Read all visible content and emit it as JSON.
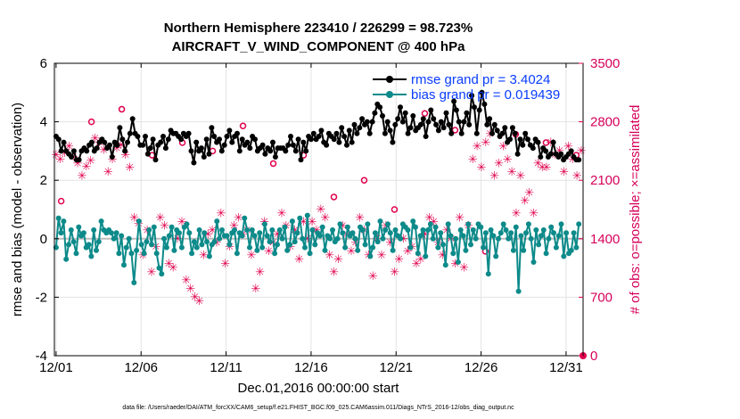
{
  "chart_data": {
    "type": "line",
    "title_line1": "Northern Hemisphere 223410 / 226299 = 98.723%",
    "title_line2": "AIRCRAFT_V_WIND_COMPONENT @ 400 hPa",
    "xlabel": "Dec.01,2016 00:00:00 start",
    "ylabel_left": "rmse and bias (model - observation)",
    "ylabel_right": "# of obs: o=possible; ×=assimilated",
    "x_ticks": [
      1,
      6,
      11,
      16,
      21,
      26,
      31
    ],
    "x_tick_labels": [
      "12/01",
      "12/06",
      "12/11",
      "12/16",
      "12/21",
      "12/26",
      "12/31"
    ],
    "xlim": [
      0.9,
      32.0
    ],
    "ylim_left": [
      -4,
      6
    ],
    "y_ticks_left": [
      -4,
      -2,
      0,
      2,
      4,
      6
    ],
    "ylim_right": [
      0,
      3500
    ],
    "y_ticks_right": [
      0,
      700,
      1400,
      2100,
      2800,
      3500
    ],
    "legend": {
      "position": "top-right",
      "entries": [
        "rmse grand pr = 3.4024",
        "bias grand pr = 0.019439"
      ]
    },
    "colors": {
      "rmse": "#000000",
      "bias": "#0d8a8a",
      "obs": "#e0004d",
      "zero_line": "#bdbdbd",
      "grid": "#e3e3e3"
    },
    "series": [
      {
        "name": "rmse",
        "values": [
          3.5,
          3.4,
          3.0,
          3.3,
          3.0,
          2.9,
          2.8,
          3.0,
          2.7,
          2.7,
          3.0,
          3.1,
          3.0,
          3.2,
          3.3,
          3.0,
          3.1,
          3.3,
          3.4,
          3.3,
          3.1,
          3.2,
          2.8,
          3.3,
          3.2,
          3.8,
          3.4,
          3.0,
          3.3,
          3.6,
          4.1,
          3.6,
          3.5,
          3.2,
          3.2,
          3.5,
          2.9,
          3.1,
          3.4,
          2.7,
          3.2,
          3.3,
          3.5,
          3.1,
          3.4,
          3.7,
          3.6,
          3.6,
          3.5,
          3.4,
          3.6,
          3.5,
          3.6,
          3.0,
          2.6,
          3.3,
          3.0,
          3.1,
          2.8,
          3.4,
          2.9,
          3.8,
          3.5,
          3.3,
          3.4,
          3.0,
          3.2,
          3.5,
          3.7,
          3.3,
          3.5,
          3.6,
          3.0,
          3.4,
          3.2,
          3.3,
          3.1,
          3.5,
          3.4,
          3.0,
          3.1,
          3.2,
          2.9,
          3.1,
          3.0,
          3.3,
          2.8,
          3.1,
          3.1,
          3.1,
          3.0,
          3.2,
          3.5,
          3.2,
          3.0,
          3.4,
          2.7,
          3.3,
          3.0,
          3.5,
          3.4,
          3.6,
          3.4,
          3.5,
          3.7,
          3.3,
          3.2,
          3.6,
          3.5,
          3.4,
          3.6,
          3.3,
          3.8,
          3.5,
          3.2,
          3.7,
          3.3,
          3.9,
          3.6,
          3.8,
          4.1,
          3.9,
          4.0,
          3.6,
          4.0,
          4.3,
          4.6,
          4.5,
          4.2,
          3.6,
          4.0,
          3.7,
          3.3,
          3.9,
          4.1,
          4.5,
          4.0,
          4.3,
          3.6,
          3.8,
          4.2,
          3.7,
          3.8,
          3.9,
          4.1,
          3.5,
          4.0,
          4.4,
          4.1,
          3.9,
          3.7,
          4.0,
          3.8,
          4.3,
          3.9,
          3.6,
          4.7,
          4.4,
          4.0,
          3.6,
          4.0,
          4.3,
          3.9,
          4.9,
          4.5,
          3.6,
          4.4,
          5.0,
          4.6,
          3.9,
          4.1,
          3.6,
          3.9,
          3.7,
          3.5,
          3.6,
          3.8,
          3.3,
          3.4,
          3.8,
          3.6,
          2.9,
          3.4,
          3.2,
          3.6,
          3.4,
          3.2,
          3.1,
          3.4,
          3.3,
          2.8,
          3.1,
          3.0,
          2.8,
          2.9,
          3.3,
          2.9,
          2.8,
          2.9,
          2.7,
          2.8,
          2.9,
          3.0,
          2.8,
          2.7,
          2.7
        ],
        "color": "#000000"
      },
      {
        "name": "bias",
        "values": [
          -0.3,
          0.7,
          0.2,
          0.6,
          -0.7,
          -0.2,
          0.3,
          -0.1,
          -0.5,
          0.4,
          0.1,
          0.2,
          -0.3,
          -0.2,
          -0.6,
          0.3,
          -0.4,
          -0.1,
          0.6,
          0.3,
          0.2,
          0.3,
          0.2,
          0.0,
          0.2,
          -0.5,
          0.1,
          -0.9,
          -0.3,
          0.0,
          -0.5,
          -1.5,
          -0.4,
          0.6,
          -0.2,
          -0.5,
          -0.1,
          0.3,
          -0.2,
          0.4,
          -0.5,
          -1.0,
          -1.2,
          0.0,
          -0.3,
          0.1,
          0.4,
          -0.4,
          0.3,
          0.2,
          -0.3,
          0.4,
          0.5,
          0.2,
          -0.5,
          -0.1,
          -0.3,
          0.3,
          -0.2,
          0.2,
          -0.1,
          -0.6,
          -0.2,
          -0.1,
          0.6,
          0.0,
          0.3,
          0.1,
          0.1,
          -0.2,
          0.2,
          0.3,
          -0.5,
          0.2,
          0.1,
          0.7,
          0.3,
          -0.3,
          0.3,
          0.1,
          -0.4,
          0.2,
          -0.3,
          0.5,
          0.1,
          -0.1,
          0.3,
          -0.5,
          -0.2,
          0.3,
          0.0,
          0.4,
          -0.4,
          -0.2,
          0.6,
          -0.1,
          0.2,
          0.7,
          0.0,
          -0.3,
          0.8,
          -0.5,
          0.3,
          -0.2,
          0.2,
          0.1,
          0.4,
          -0.4,
          0.1,
          0.0,
          0.3,
          -0.1,
          0.0,
          0.5,
          0.2,
          -0.3,
          0.4,
          0.1,
          0.2,
          0.0,
          -0.4,
          0.4,
          0.3,
          -0.2,
          0.5,
          -0.6,
          -0.3,
          0.2,
          -0.1,
          0.6,
          0.0,
          0.3,
          0.5,
          0.2,
          -0.4,
          0.3,
          0.1,
          0.0,
          0.5,
          0.4,
          0.3,
          -0.3,
          0.6,
          0.4,
          -0.5,
          0.1,
          0.3,
          -0.6,
          0.3,
          0.5,
          0.0,
          0.4,
          -0.3,
          0.2,
          -0.2,
          -0.9,
          0.5,
          0.1,
          -0.5,
          0.0,
          -0.8,
          0.3,
          0.1,
          -0.4,
          0.5,
          -0.2,
          0.3,
          0.0,
          0.5,
          0.4,
          -0.3,
          0.2,
          -1.2,
          0.3,
          0.1,
          -0.6,
          0.0,
          0.2,
          0.5,
          0.3,
          0.0,
          0.2,
          -0.4,
          0.4,
          -1.8,
          0.1,
          -0.4,
          0.2,
          0.5,
          0.0,
          -0.8,
          0.3,
          -0.2,
          0.1,
          0.3,
          -0.5,
          0.0,
          0.4,
          0.2,
          -0.3,
          0.1,
          0.5,
          -0.6,
          0.2,
          -0.5,
          -0.4,
          0.2,
          -0.3,
          0.5
        ],
        "color": "#0d8a8a"
      }
    ],
    "obs_counts": {
      "possible": [
        1850,
        2800,
        2950,
        2400,
        2550,
        2450,
        2750,
        2300,
        2400,
        1900,
        2100,
        1750,
        2900,
        2700,
        1250,
        2650,
        2550,
        2400
      ],
      "assimilated": [
        2400,
        2350,
        2420,
        2500,
        2380,
        2300,
        2150,
        2260,
        2330,
        2600,
        2550,
        2460,
        2200,
        2350,
        2480,
        2520,
        2400,
        2250,
        1650,
        1580,
        1200,
        1500,
        1000,
        1300,
        1650,
        1550,
        1100,
        1050,
        1400,
        1600,
        900,
        800,
        700,
        650,
        1200,
        1450,
        1500,
        1350,
        1700,
        1100,
        1300,
        1550,
        1650,
        1450,
        1500,
        1200,
        800,
        1000,
        1600,
        1250,
        1350,
        1450,
        1700,
        1550,
        1300,
        1500,
        1150,
        1600,
        1400,
        1600,
        1500,
        1750,
        1650,
        1200,
        1000,
        1150,
        1550,
        1450,
        1250,
        1350,
        1650,
        1500,
        1200,
        950,
        1400,
        1200,
        1550,
        1350,
        1000,
        1150,
        1400,
        1250,
        1300,
        1100,
        1150,
        1450,
        1650,
        1600,
        1350,
        1200,
        1500,
        1400,
        1100,
        1650,
        1050,
        1550,
        2350,
        2500,
        2250,
        2550,
        2650,
        2150,
        2300,
        2500,
        2350,
        2200,
        1700,
        2150,
        1850,
        1950,
        1700,
        2300,
        2250,
        2250,
        2550,
        2400,
        2450,
        2200,
        2500,
        2350,
        2150,
        2450
      ]
    },
    "footer": "data file: /Users/raeder/DAI/ATM_forcXX/CAM6_setup/f.e21.FHIST_BGC.f09_025.CAM6assim.011/Diags_NTrS_2016-12/obs_diag_output.nc"
  }
}
